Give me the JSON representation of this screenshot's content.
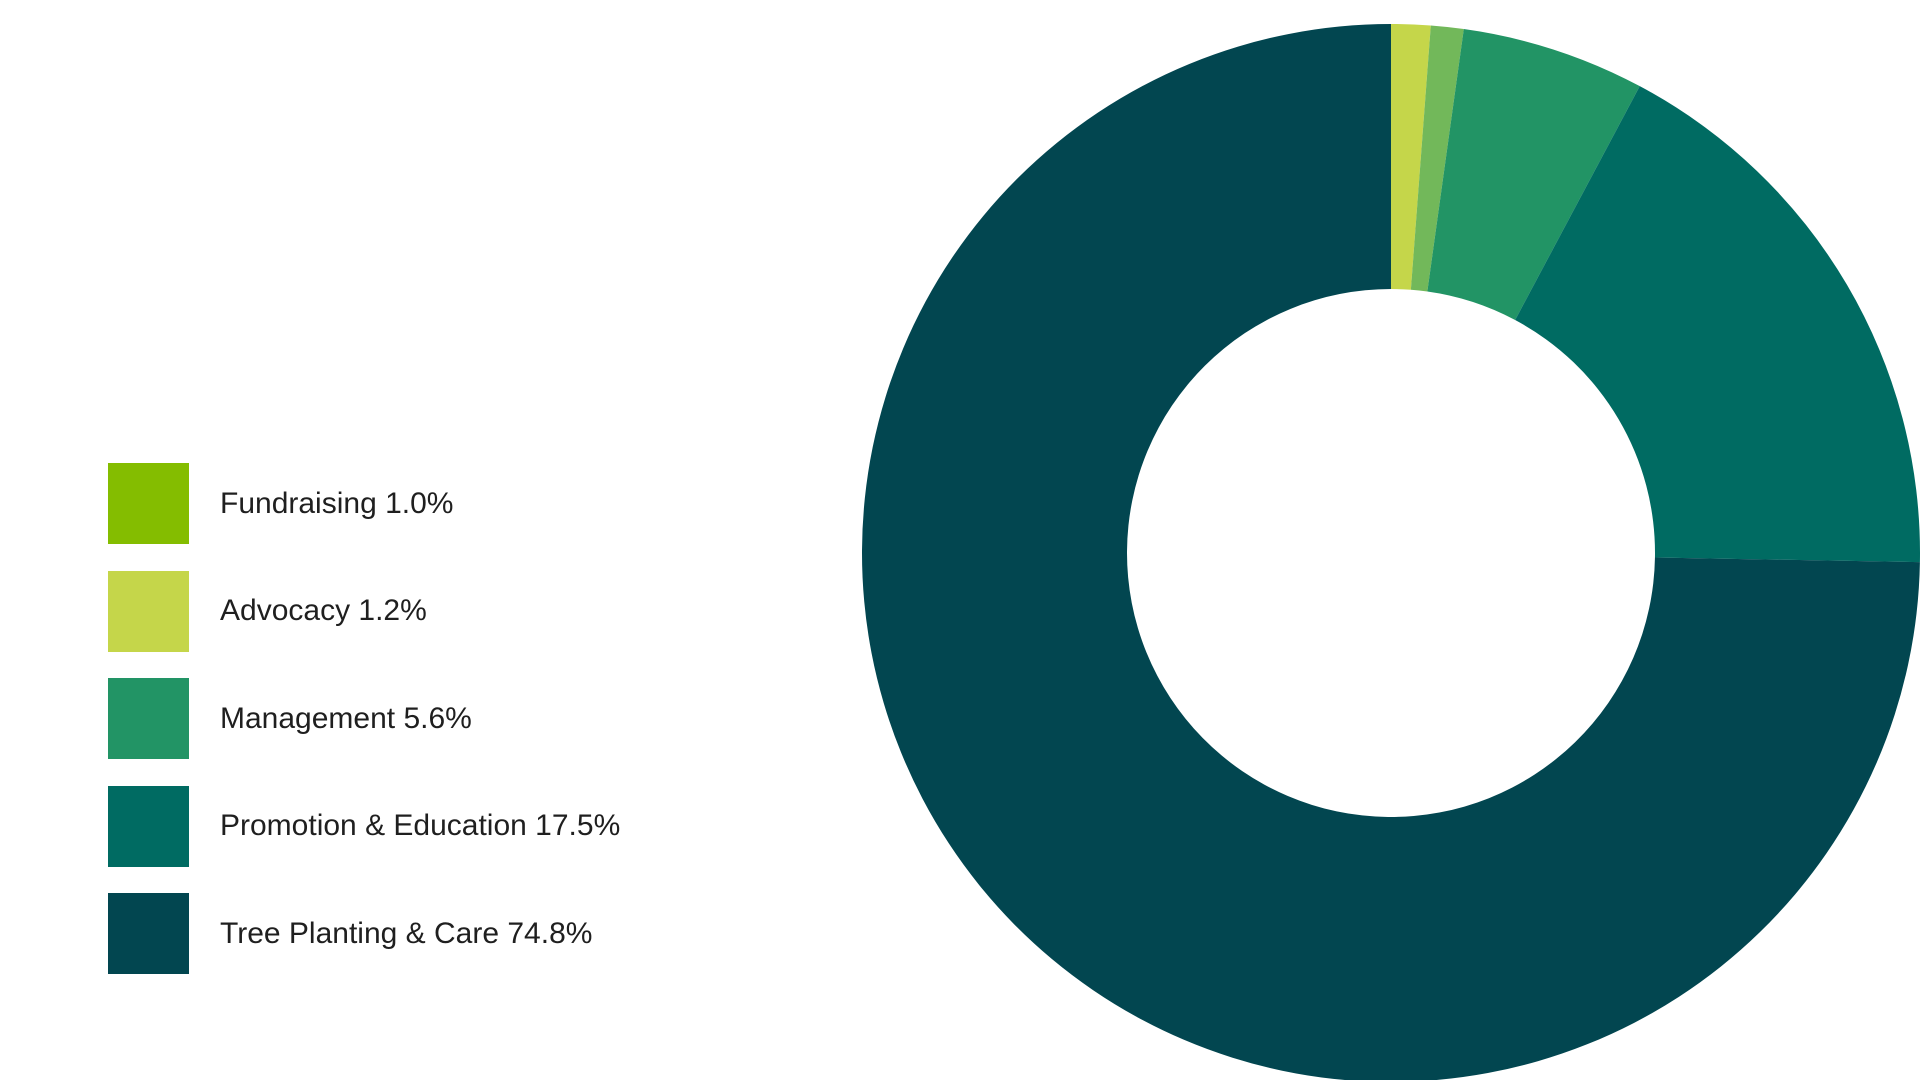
{
  "chart_data": {
    "type": "pie",
    "donut": true,
    "legend_position": "left",
    "slices": [
      {
        "label": "Advocacy",
        "value": 1.2,
        "color": "#c5d64a"
      },
      {
        "label": "Fundraising",
        "value": 1.0,
        "color": "#72b85a"
      },
      {
        "label": "Management",
        "value": 5.6,
        "color": "#229465"
      },
      {
        "label": "Promotion & Education",
        "value": 17.5,
        "color": "#006b62"
      },
      {
        "label": "Tree Planting & Care",
        "value": 74.8,
        "color": "#024650"
      }
    ]
  },
  "legend": [
    {
      "label": "Fundraising 1.0%",
      "color": "#84bd00"
    },
    {
      "label": "Advocacy 1.2%",
      "color": "#c5d64a"
    },
    {
      "label": "Management 5.6%",
      "color": "#229465"
    },
    {
      "label": "Promotion & Education 17.5%",
      "color": "#006b62"
    },
    {
      "label": "Tree Planting & Care 74.8%",
      "color": "#024650"
    }
  ]
}
